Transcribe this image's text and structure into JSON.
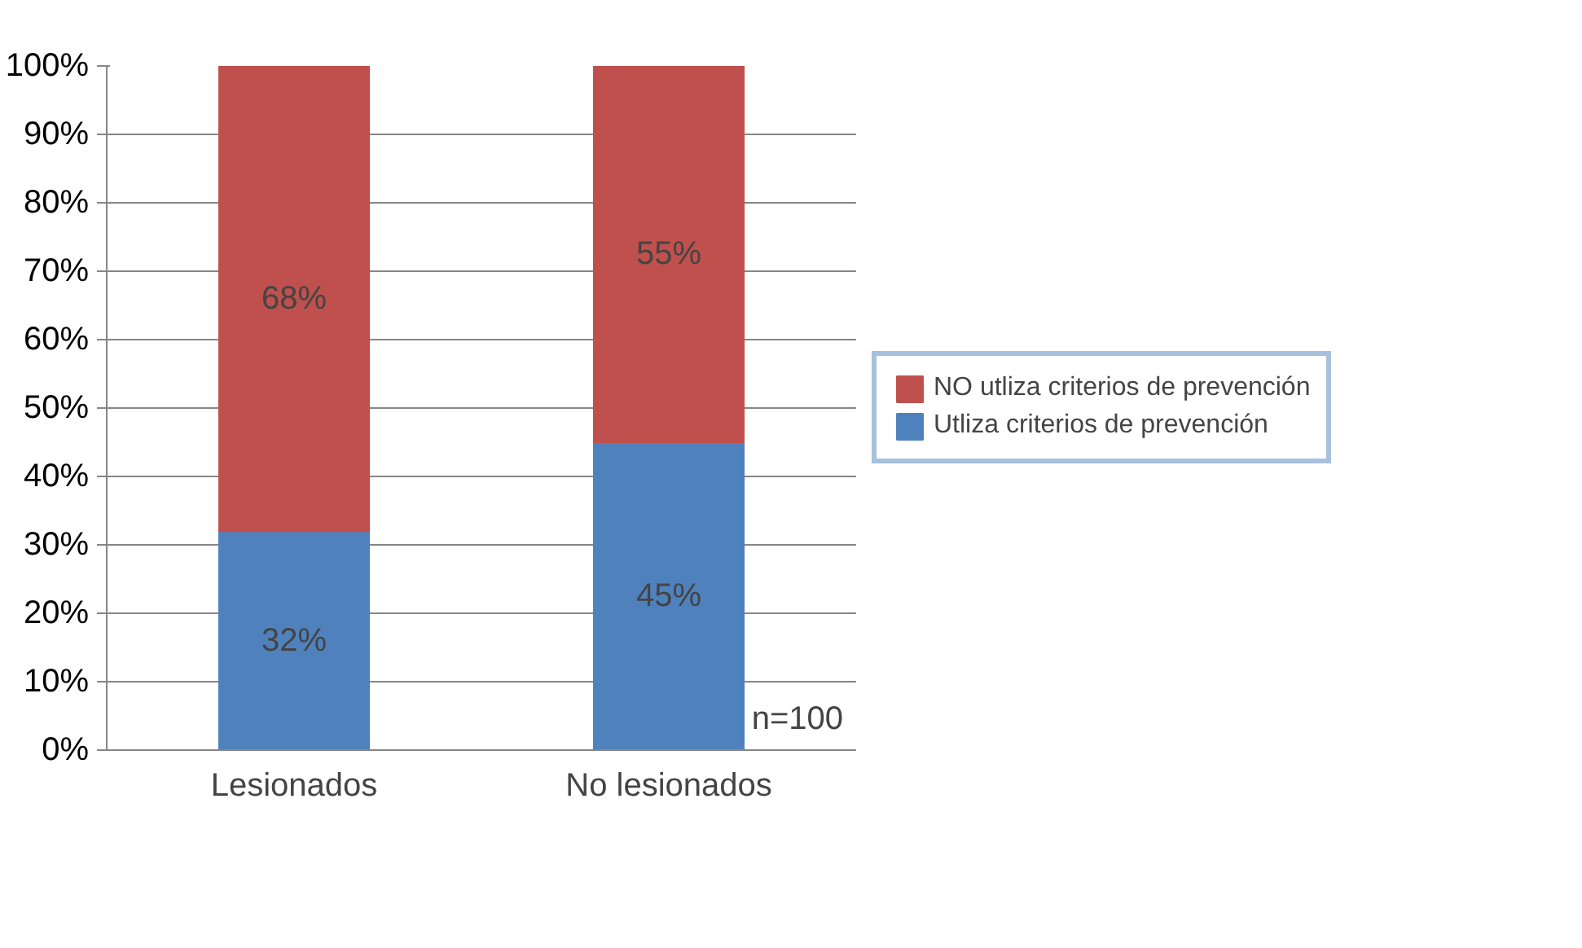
{
  "chart_data": {
    "type": "bar",
    "stacked": true,
    "categories": [
      "Lesionados",
      "No lesionados"
    ],
    "series": [
      {
        "name": "Utliza criterios de prevención",
        "color": "#4f81bd",
        "values": [
          32,
          45
        ],
        "value_labels": [
          "32%",
          "45%"
        ]
      },
      {
        "name": "NO utliza criterios de prevención",
        "color": "#c0504d",
        "values": [
          68,
          55
        ],
        "value_labels": [
          "68%",
          "55%"
        ]
      }
    ],
    "ylim": [
      0,
      100
    ],
    "yticks": [
      {
        "value": 0,
        "label": "0%"
      },
      {
        "value": 10,
        "label": "10%"
      },
      {
        "value": 20,
        "label": "20%"
      },
      {
        "value": 30,
        "label": "30%"
      },
      {
        "value": 40,
        "label": "40%"
      },
      {
        "value": 50,
        "label": "50%"
      },
      {
        "value": 60,
        "label": "60%"
      },
      {
        "value": 70,
        "label": "70%"
      },
      {
        "value": 80,
        "label": "80%"
      },
      {
        "value": 90,
        "label": "90%"
      },
      {
        "value": 100,
        "label": "100%"
      }
    ],
    "grid": "y",
    "legend": "right",
    "annotations": [
      "n=100"
    ]
  }
}
